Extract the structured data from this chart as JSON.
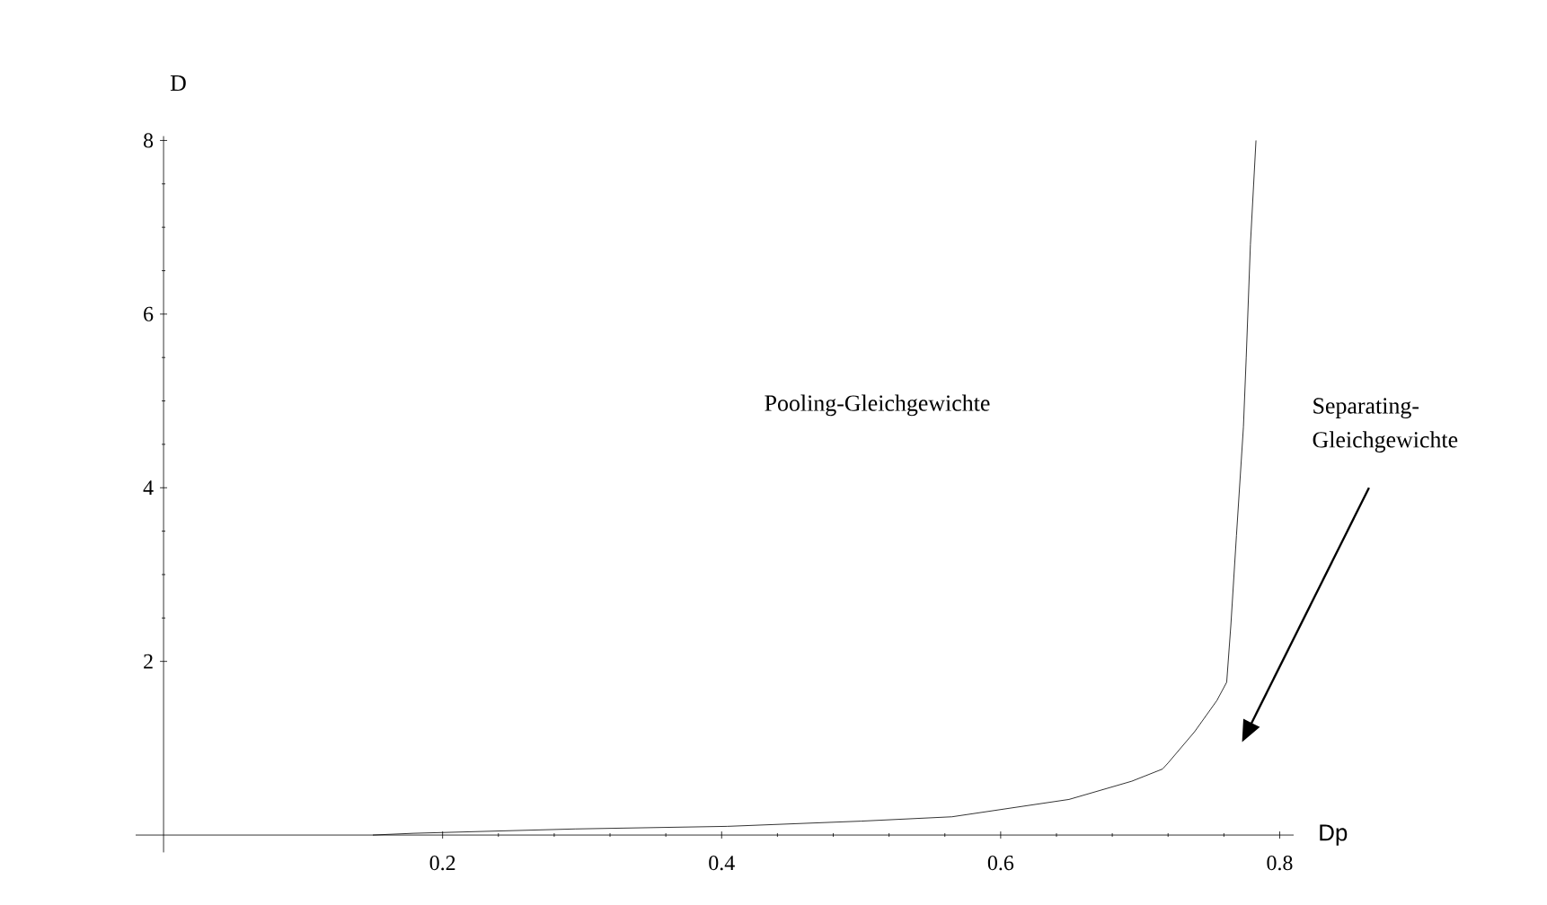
{
  "chart_data": {
    "type": "line",
    "xlabel": "Dp",
    "ylabel": "D",
    "x": [
      0.15,
      0.179,
      0.295,
      0.404,
      0.5,
      0.565,
      0.649,
      0.694,
      0.716,
      0.72,
      0.739,
      0.755,
      0.762,
      0.765,
      0.769,
      0.774,
      0.776,
      0.779,
      0.783
    ],
    "series": [
      {
        "color": "#000000",
        "values": [
          0,
          0.02,
          0.07,
          0.1,
          0.16,
          0.21,
          0.41,
          0.62,
          0.76,
          0.83,
          1.19,
          1.55,
          1.76,
          2.42,
          3.45,
          4.7,
          5.5,
          6.8,
          8.0
        ]
      }
    ],
    "xlim": [
      -0.02,
      0.81
    ],
    "ylim": [
      -0.2,
      8.05
    ],
    "xticks": [
      0.2,
      0.4,
      0.6,
      0.8
    ],
    "yticks": [
      2,
      4,
      6,
      8
    ],
    "annotations": [
      "Pooling-Gleichgewichte",
      "Separating-Gleichgewichte"
    ],
    "marker": "none",
    "line_style": "solid"
  }
}
